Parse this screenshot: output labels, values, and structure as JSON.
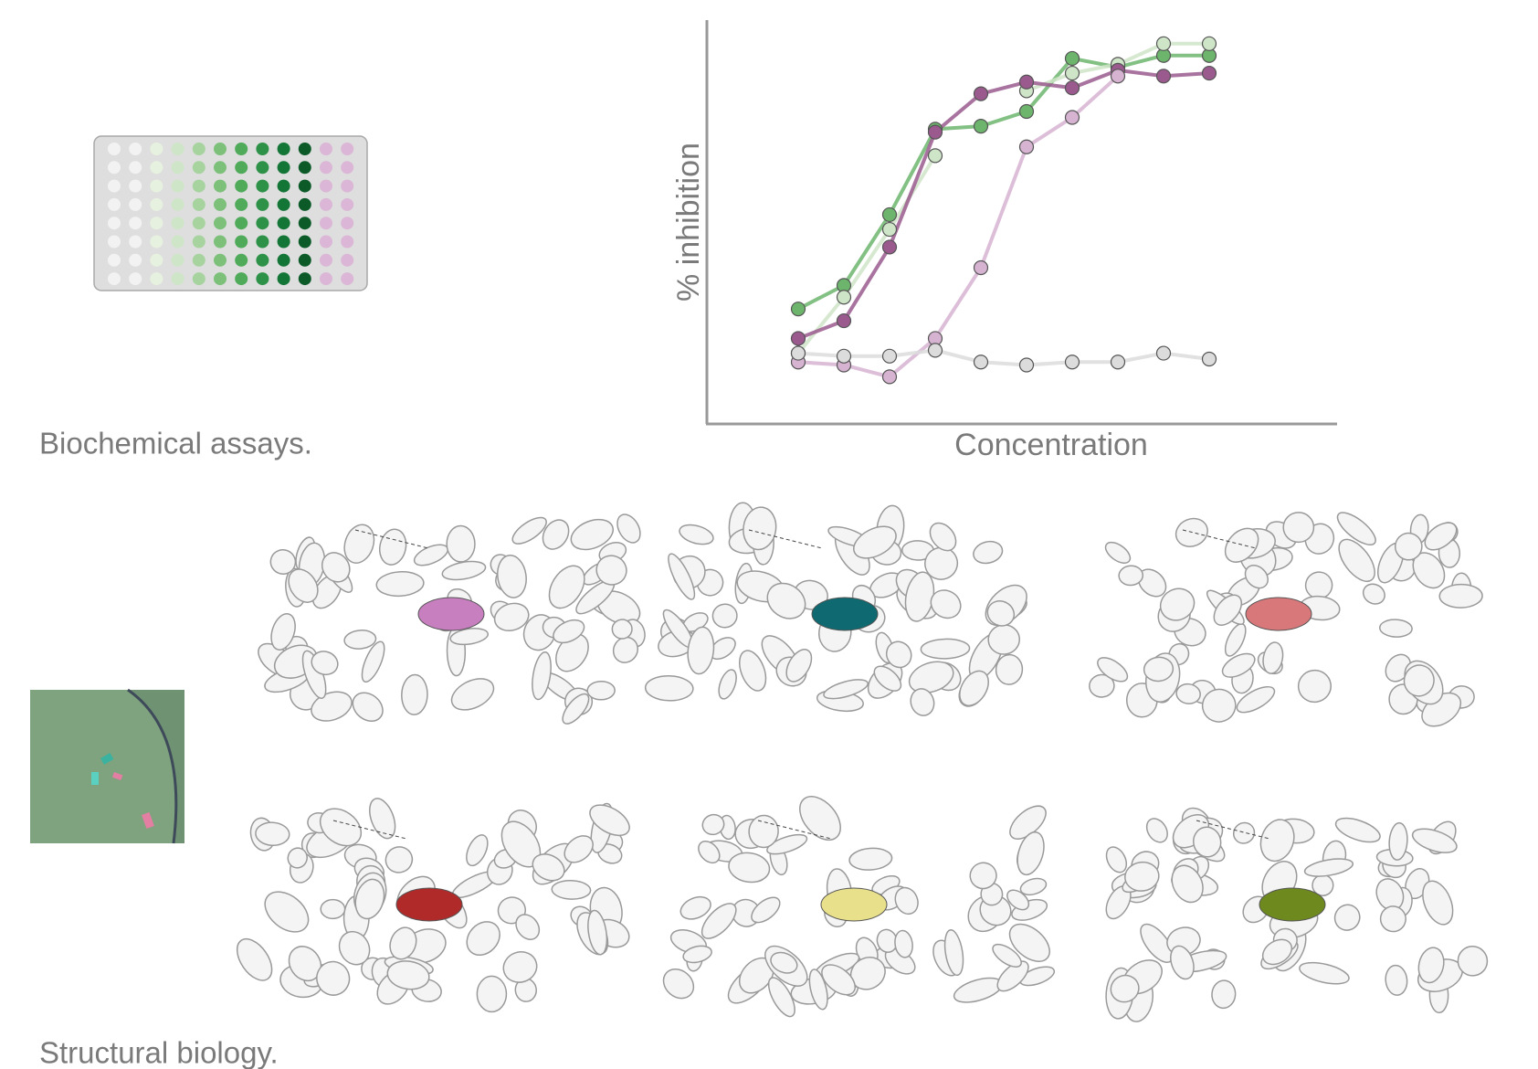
{
  "chart_data": {
    "type": "scatter",
    "ylabel": "% inhibition",
    "xlabel": "Concentration",
    "x": [
      1,
      2,
      3,
      4,
      5,
      6,
      7,
      8,
      9,
      10
    ],
    "xlim": [
      -1,
      12.8
    ],
    "ylim": [
      -17,
      120
    ],
    "series": [
      {
        "color": "#6db56d",
        "values": [
          22,
          30,
          54,
          83,
          84,
          89,
          107,
          104,
          108,
          108
        ]
      },
      {
        "color": "#cfe5c8",
        "values": [
          7,
          26,
          49,
          74,
          null,
          96,
          102,
          105,
          112,
          112
        ]
      },
      {
        "color": "#9a5a8e",
        "values": [
          12,
          18,
          43,
          82,
          95,
          99,
          97,
          103,
          101,
          102
        ]
      },
      {
        "color": "#d7b3d2",
        "values": [
          4,
          3,
          -1,
          12,
          36,
          77,
          87,
          101,
          null,
          null
        ]
      },
      {
        "color": "#dcdcdc",
        "values": [
          7,
          6,
          6,
          8,
          4,
          3,
          4,
          4,
          7,
          5
        ]
      }
    ]
  },
  "captions": {
    "assays": "Biochemical assays.",
    "structural": "Structural biology."
  }
}
